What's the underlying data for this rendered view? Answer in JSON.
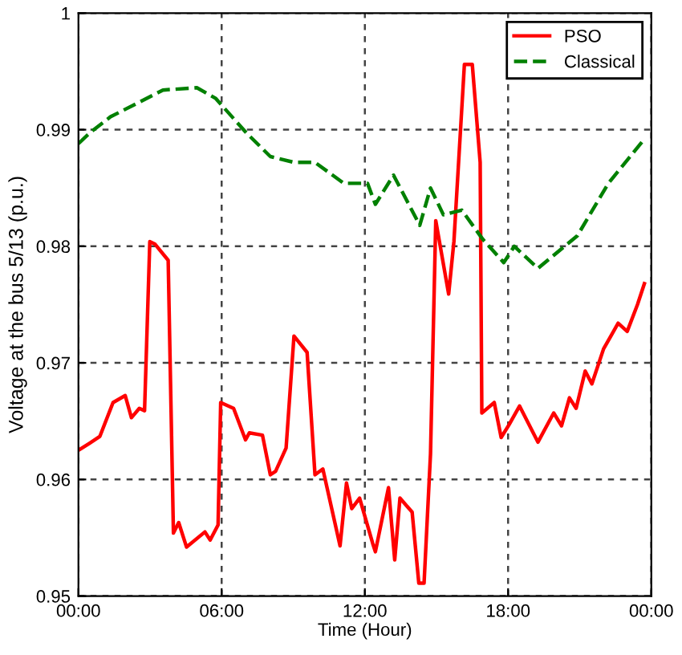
{
  "chart_data": {
    "type": "line",
    "xlabel": "Time (Hour)",
    "ylabel": "Voltage at the bus 5/13 (p.u.)",
    "xlim": [
      0,
      24
    ],
    "xticks": [
      {
        "value": 0,
        "label": "00:00"
      },
      {
        "value": 6,
        "label": "06:00"
      },
      {
        "value": 12,
        "label": "12:00"
      },
      {
        "value": 18,
        "label": "18:00"
      },
      {
        "value": 24,
        "label": "00:00"
      }
    ],
    "ylim": [
      0.95,
      1
    ],
    "yticks": [
      0.95,
      0.96,
      0.97,
      0.98,
      0.99,
      {
        "value": 1,
        "label": "1"
      }
    ],
    "grid": true,
    "legend": "top right",
    "series": [
      {
        "name": "PSO",
        "color": "#ff0000",
        "line_style": "solid",
        "x": [
          0,
          0.46,
          0.9,
          1.45,
          1.96,
          2.22,
          2.55,
          2.77,
          2.99,
          3.2,
          3.76,
          3.98,
          4.2,
          4.53,
          5.3,
          5.52,
          5.85,
          5.96,
          6.5,
          7.0,
          7.16,
          7.71,
          8.04,
          8.26,
          8.7,
          9.03,
          9.58,
          9.91,
          10.24,
          10.96,
          11.23,
          11.45,
          11.78,
          12.33,
          12.44,
          12.99,
          13.25,
          13.47,
          13.98,
          14.26,
          14.48,
          14.75,
          14.97,
          15.51,
          15.73,
          16.17,
          16.5,
          16.83,
          16.9,
          17.42,
          17.71,
          18.04,
          18.48,
          19.25,
          19.91,
          20.24,
          20.57,
          20.85,
          21.23,
          21.51,
          22.0,
          22.61,
          22.99,
          23.42,
          23.71
        ],
        "values": [
          0.9625,
          0.9631,
          0.9637,
          0.9666,
          0.9672,
          0.9653,
          0.9661,
          0.9659,
          0.9804,
          0.9802,
          0.9788,
          0.9554,
          0.9563,
          0.9542,
          0.9555,
          0.9548,
          0.9561,
          0.9666,
          0.9661,
          0.9634,
          0.964,
          0.9638,
          0.9604,
          0.9607,
          0.9627,
          0.9723,
          0.9709,
          0.9604,
          0.9609,
          0.9543,
          0.9597,
          0.9575,
          0.9584,
          0.9545,
          0.9538,
          0.9593,
          0.9531,
          0.9584,
          0.9572,
          0.9511,
          0.9511,
          0.9622,
          0.9822,
          0.9759,
          0.9804,
          0.9956,
          0.9956,
          0.9872,
          0.9657,
          0.9666,
          0.9636,
          0.9647,
          0.9663,
          0.9632,
          0.9657,
          0.9646,
          0.967,
          0.9661,
          0.9693,
          0.9682,
          0.9712,
          0.9734,
          0.9727,
          0.975,
          0.9768
        ]
      },
      {
        "name": "Classical",
        "color": "#008000",
        "line_style": "dashed",
        "x": [
          0,
          0.46,
          1.34,
          3.54,
          4.96,
          5.74,
          7.05,
          8.04,
          9.03,
          9.91,
          11.12,
          12.11,
          12.44,
          13.2,
          14.3,
          14.75,
          15.29,
          16.06,
          16.94,
          17.82,
          18.26,
          19.25,
          20.9,
          22.2,
          23.75
        ],
        "values": [
          0.9888,
          0.9897,
          0.9911,
          0.9934,
          0.9936,
          0.9927,
          0.9897,
          0.9877,
          0.9872,
          0.9872,
          0.9854,
          0.9854,
          0.9836,
          0.9861,
          0.9818,
          0.985,
          0.9827,
          0.9831,
          0.9806,
          0.9786,
          0.98,
          0.9781,
          0.9809,
          0.9854,
          0.9893
        ]
      }
    ]
  }
}
